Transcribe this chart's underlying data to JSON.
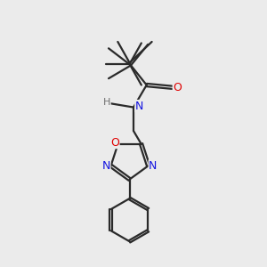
{
  "bg_color": "#ebebeb",
  "bond_color": "#2a2a2a",
  "bond_width": 1.6,
  "atom_colors": {
    "O": "#e00000",
    "N": "#1414e0",
    "H": "#707070",
    "C": "#2a2a2a"
  },
  "font_size": 8.5
}
